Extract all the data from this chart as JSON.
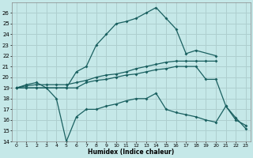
{
  "xlabel": "Humidex (Indice chaleur)",
  "background_color": "#c5e8e8",
  "grid_color": "#aecfcf",
  "line_color": "#1a6060",
  "xlim": [
    -0.5,
    23.5
  ],
  "ylim": [
    14,
    27
  ],
  "xticks": [
    0,
    1,
    2,
    3,
    4,
    5,
    6,
    7,
    8,
    9,
    10,
    11,
    12,
    13,
    14,
    15,
    16,
    17,
    18,
    19,
    20,
    21,
    22,
    23
  ],
  "yticks": [
    14,
    15,
    16,
    17,
    18,
    19,
    20,
    21,
    22,
    23,
    24,
    25,
    26
  ],
  "series": [
    {
      "x": [
        0,
        1,
        2,
        3,
        5,
        6,
        7,
        8,
        9,
        10,
        11,
        12,
        13,
        14,
        15,
        16,
        17,
        18,
        20
      ],
      "y": [
        19,
        19.3,
        19.5,
        19,
        19,
        20.5,
        21,
        23,
        24,
        25,
        25.2,
        25.5,
        26,
        26.5,
        25.5,
        24.5,
        22.2,
        22.5,
        22
      ]
    },
    {
      "x": [
        0,
        1,
        2,
        3,
        4,
        5,
        6,
        7,
        8,
        9,
        10,
        11,
        12,
        13,
        14,
        15,
        16,
        17,
        18,
        19,
        20
      ],
      "y": [
        19,
        19.2,
        19.3,
        19.3,
        19.3,
        19.3,
        19.5,
        19.7,
        20,
        20.2,
        20.3,
        20.5,
        20.8,
        21,
        21.2,
        21.4,
        21.5,
        21.5,
        21.5,
        21.5,
        21.5
      ]
    },
    {
      "x": [
        0,
        1,
        2,
        3,
        4,
        5,
        6,
        7,
        8,
        9,
        10,
        11,
        12,
        13,
        14,
        15,
        16,
        17,
        18,
        19,
        20,
        21,
        22,
        23
      ],
      "y": [
        19,
        19,
        19,
        19,
        18,
        14,
        16.3,
        17,
        17,
        17.3,
        17.5,
        17.8,
        18,
        18,
        18.5,
        17,
        16.7,
        16.5,
        16.3,
        16,
        15.8,
        17.3,
        16,
        15.5
      ]
    },
    {
      "x": [
        0,
        1,
        2,
        3,
        4,
        5,
        6,
        7,
        8,
        9,
        10,
        11,
        12,
        13,
        14,
        15,
        16,
        17,
        18,
        19,
        20,
        21,
        22,
        23
      ],
      "y": [
        19,
        19,
        19,
        19,
        19,
        19,
        19,
        19.5,
        19.7,
        19.8,
        20,
        20.2,
        20.3,
        20.5,
        20.7,
        20.8,
        21,
        21,
        21,
        19.8,
        19.8,
        17.3,
        16.2,
        15.2
      ]
    }
  ]
}
